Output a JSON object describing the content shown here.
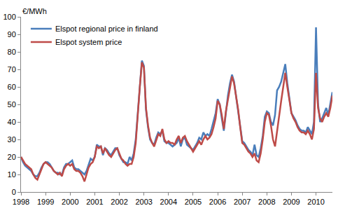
{
  "chart_data": {
    "type": "line",
    "y_label": "€/MWh",
    "categories": [
      "1998",
      null,
      null,
      null,
      null,
      null,
      null,
      null,
      null,
      null,
      null,
      null,
      "1999",
      null,
      null,
      null,
      null,
      null,
      null,
      null,
      null,
      null,
      null,
      null,
      "2000",
      null,
      null,
      null,
      null,
      null,
      null,
      null,
      null,
      null,
      null,
      null,
      "2001",
      null,
      null,
      null,
      null,
      null,
      null,
      null,
      null,
      null,
      null,
      null,
      "2002",
      null,
      null,
      null,
      null,
      null,
      null,
      null,
      null,
      null,
      null,
      null,
      "2003",
      null,
      null,
      null,
      null,
      null,
      null,
      null,
      null,
      null,
      null,
      null,
      "2004",
      null,
      null,
      null,
      null,
      null,
      null,
      null,
      null,
      null,
      null,
      null,
      "2005",
      null,
      null,
      null,
      null,
      null,
      null,
      null,
      null,
      null,
      null,
      null,
      "2006",
      null,
      null,
      null,
      null,
      null,
      null,
      null,
      null,
      null,
      null,
      null,
      "2007",
      null,
      null,
      null,
      null,
      null,
      null,
      null,
      null,
      null,
      null,
      null,
      "2008",
      null,
      null,
      null,
      null,
      null,
      null,
      null,
      null,
      null,
      null,
      null,
      "2009",
      null,
      null,
      null,
      null,
      null,
      null,
      null,
      null,
      null,
      null,
      null,
      "2010",
      null,
      null,
      null,
      null,
      null,
      null,
      null,
      null
    ],
    "series": [
      {
        "name": "Elspot regional price in finland",
        "color": "#4a7ebb",
        "values": [
          20,
          17,
          15,
          14,
          13,
          12,
          10,
          9,
          9,
          11,
          14,
          16,
          17,
          17,
          16,
          14,
          12,
          11,
          11,
          10,
          10,
          14,
          16,
          16,
          17,
          18,
          14,
          13,
          13,
          12,
          11,
          10,
          12,
          16,
          19,
          18,
          20,
          27,
          26,
          26,
          21,
          25,
          24,
          22,
          21,
          23,
          25,
          25,
          21,
          19,
          17,
          17,
          16,
          20,
          18,
          22,
          30,
          45,
          60,
          75,
          72,
          47,
          37,
          30,
          28,
          27,
          31,
          34,
          33,
          35,
          29,
          28,
          28,
          27,
          26,
          27,
          28,
          31,
          26,
          30,
          31,
          27,
          26,
          25,
          24,
          26,
          28,
          31,
          30,
          34,
          32,
          33,
          32,
          36,
          41,
          45,
          53,
          50,
          42,
          35,
          45,
          55,
          62,
          67,
          63,
          54,
          46,
          36,
          29,
          28,
          26,
          24,
          23,
          21,
          27,
          21,
          20,
          25,
          32,
          43,
          46,
          45,
          40,
          38,
          44,
          58,
          60,
          63,
          68,
          73,
          62,
          54,
          45,
          43,
          41,
          38,
          36,
          35,
          35,
          34,
          37,
          35,
          33,
          40,
          94,
          50,
          40,
          42,
          45,
          48,
          44,
          50,
          57
        ]
      },
      {
        "name": "Elspot system price",
        "color": "#be4b48",
        "values": [
          20,
          18,
          16,
          15,
          14,
          13,
          10,
          8,
          7,
          10,
          13,
          16,
          17,
          16,
          15,
          14,
          12,
          11,
          10,
          11,
          9,
          13,
          15,
          16,
          15,
          16,
          13,
          12,
          12,
          11,
          9,
          6,
          10,
          14,
          16,
          17,
          20,
          26,
          25,
          26,
          22,
          25,
          23,
          21,
          20,
          22,
          24,
          25,
          22,
          19,
          18,
          16,
          15,
          16,
          16,
          20,
          28,
          45,
          60,
          74,
          71,
          48,
          38,
          31,
          28,
          26,
          30,
          33,
          32,
          36,
          30,
          28,
          29,
          28,
          28,
          27,
          30,
          32,
          28,
          31,
          32,
          29,
          27,
          25,
          23,
          25,
          27,
          29,
          27,
          30,
          32,
          30,
          31,
          33,
          37,
          42,
          52,
          50,
          44,
          36,
          46,
          53,
          60,
          66,
          62,
          55,
          47,
          37,
          28,
          27,
          25,
          23,
          22,
          20,
          22,
          18,
          17,
          22,
          30,
          40,
          45,
          44,
          38,
          30,
          26,
          35,
          45,
          52,
          60,
          68,
          60,
          52,
          45,
          42,
          40,
          37,
          35,
          34,
          34,
          33,
          35,
          33,
          30,
          36,
          68,
          48,
          42,
          40,
          43,
          45,
          43,
          48,
          55
        ]
      }
    ],
    "ylim": [
      0,
      100
    ],
    "yticks": [
      0,
      10,
      20,
      30,
      40,
      50,
      60,
      70,
      80,
      90,
      100
    ],
    "grid": false,
    "legend": "top-left"
  }
}
